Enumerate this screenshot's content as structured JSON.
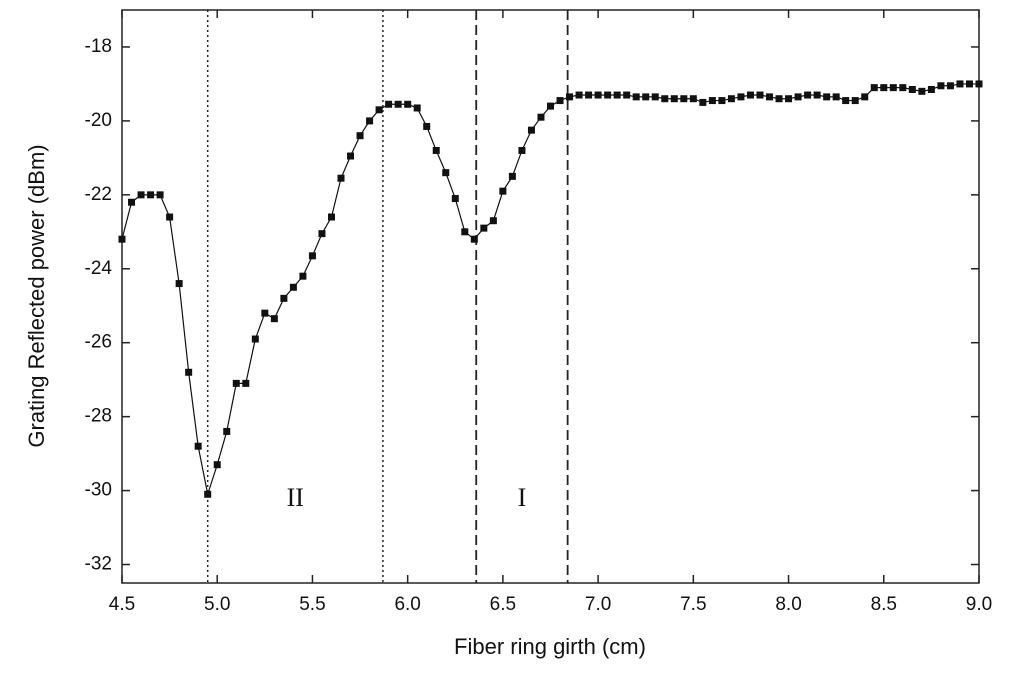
{
  "chart_data": {
    "type": "line",
    "x_label": "Fiber ring girth (cm)",
    "y_label": "Grating Reflected power (dBm)",
    "x": [
      4.5,
      4.55,
      4.6,
      4.65,
      4.7,
      4.75,
      4.8,
      4.85,
      4.9,
      4.95,
      5.0,
      5.05,
      5.1,
      5.15,
      5.2,
      5.25,
      5.3,
      5.35,
      5.4,
      5.45,
      5.5,
      5.55,
      5.6,
      5.65,
      5.7,
      5.75,
      5.8,
      5.85,
      5.9,
      5.95,
      6.0,
      6.05,
      6.1,
      6.15,
      6.2,
      6.25,
      6.3,
      6.35,
      6.4,
      6.45,
      6.5,
      6.55,
      6.6,
      6.65,
      6.7,
      6.75,
      6.8,
      6.85,
      6.9,
      6.95,
      7.0,
      7.05,
      7.1,
      7.15,
      7.2,
      7.25,
      7.3,
      7.35,
      7.4,
      7.45,
      7.5,
      7.55,
      7.6,
      7.65,
      7.7,
      7.75,
      7.8,
      7.85,
      7.9,
      7.95,
      8.0,
      8.05,
      8.1,
      8.15,
      8.2,
      8.25,
      8.3,
      8.35,
      8.4,
      8.45,
      8.5,
      8.55,
      8.6,
      8.65,
      8.7,
      8.75,
      8.8,
      8.85,
      8.9,
      8.95,
      9.0
    ],
    "series": [
      {
        "color": "#111111",
        "values": [
          -23.2,
          -22.2,
          -22.0,
          -22.0,
          -22.0,
          -22.6,
          -24.4,
          -26.8,
          -28.8,
          -30.1,
          -29.3,
          -28.4,
          -27.1,
          -27.1,
          -25.9,
          -25.2,
          -25.35,
          -24.8,
          -24.5,
          -24.2,
          -23.65,
          -23.05,
          -22.6,
          -21.55,
          -20.95,
          -20.4,
          -20.0,
          -19.7,
          -19.55,
          -19.55,
          -19.55,
          -19.65,
          -20.15,
          -20.8,
          -21.4,
          -22.1,
          -23.0,
          -23.2,
          -22.9,
          -22.7,
          -21.9,
          -21.5,
          -20.8,
          -20.25,
          -19.9,
          -19.6,
          -19.45,
          -19.35,
          -19.3,
          -19.3,
          -19.3,
          -19.3,
          -19.3,
          -19.3,
          -19.35,
          -19.35,
          -19.35,
          -19.4,
          -19.4,
          -19.4,
          -19.4,
          -19.5,
          -19.45,
          -19.45,
          -19.4,
          -19.35,
          -19.3,
          -19.3,
          -19.35,
          -19.4,
          -19.4,
          -19.35,
          -19.3,
          -19.3,
          -19.35,
          -19.35,
          -19.45,
          -19.45,
          -19.35,
          -19.1,
          -19.1,
          -19.1,
          -19.1,
          -19.15,
          -19.2,
          -19.15,
          -19.05,
          -19.05,
          -19.0,
          -19.0,
          -19.0
        ]
      }
    ],
    "xlim": [
      4.5,
      9.0
    ],
    "ylim": [
      -32.5,
      -17.0
    ],
    "xticks": [
      4.5,
      {
        "value": 5,
        "label": "5.0"
      },
      5.5,
      {
        "value": 6,
        "label": "6.0"
      },
      6.5,
      {
        "value": 7,
        "label": "7.0"
      },
      7.5,
      {
        "value": 8,
        "label": "8.0"
      },
      8.5,
      {
        "value": 9,
        "label": "9.0"
      }
    ],
    "yticks": [
      -18,
      -20,
      -22,
      -24,
      -26,
      -28,
      -30,
      -32
    ],
    "vlines": [
      {
        "x": 4.95,
        "style": "dotted"
      },
      {
        "x": 5.87,
        "style": "dotted"
      },
      {
        "x": 6.36,
        "style": "dashed"
      },
      {
        "x": 6.84,
        "style": "dashed"
      }
    ],
    "annotations": [
      "II",
      "I"
    ]
  }
}
